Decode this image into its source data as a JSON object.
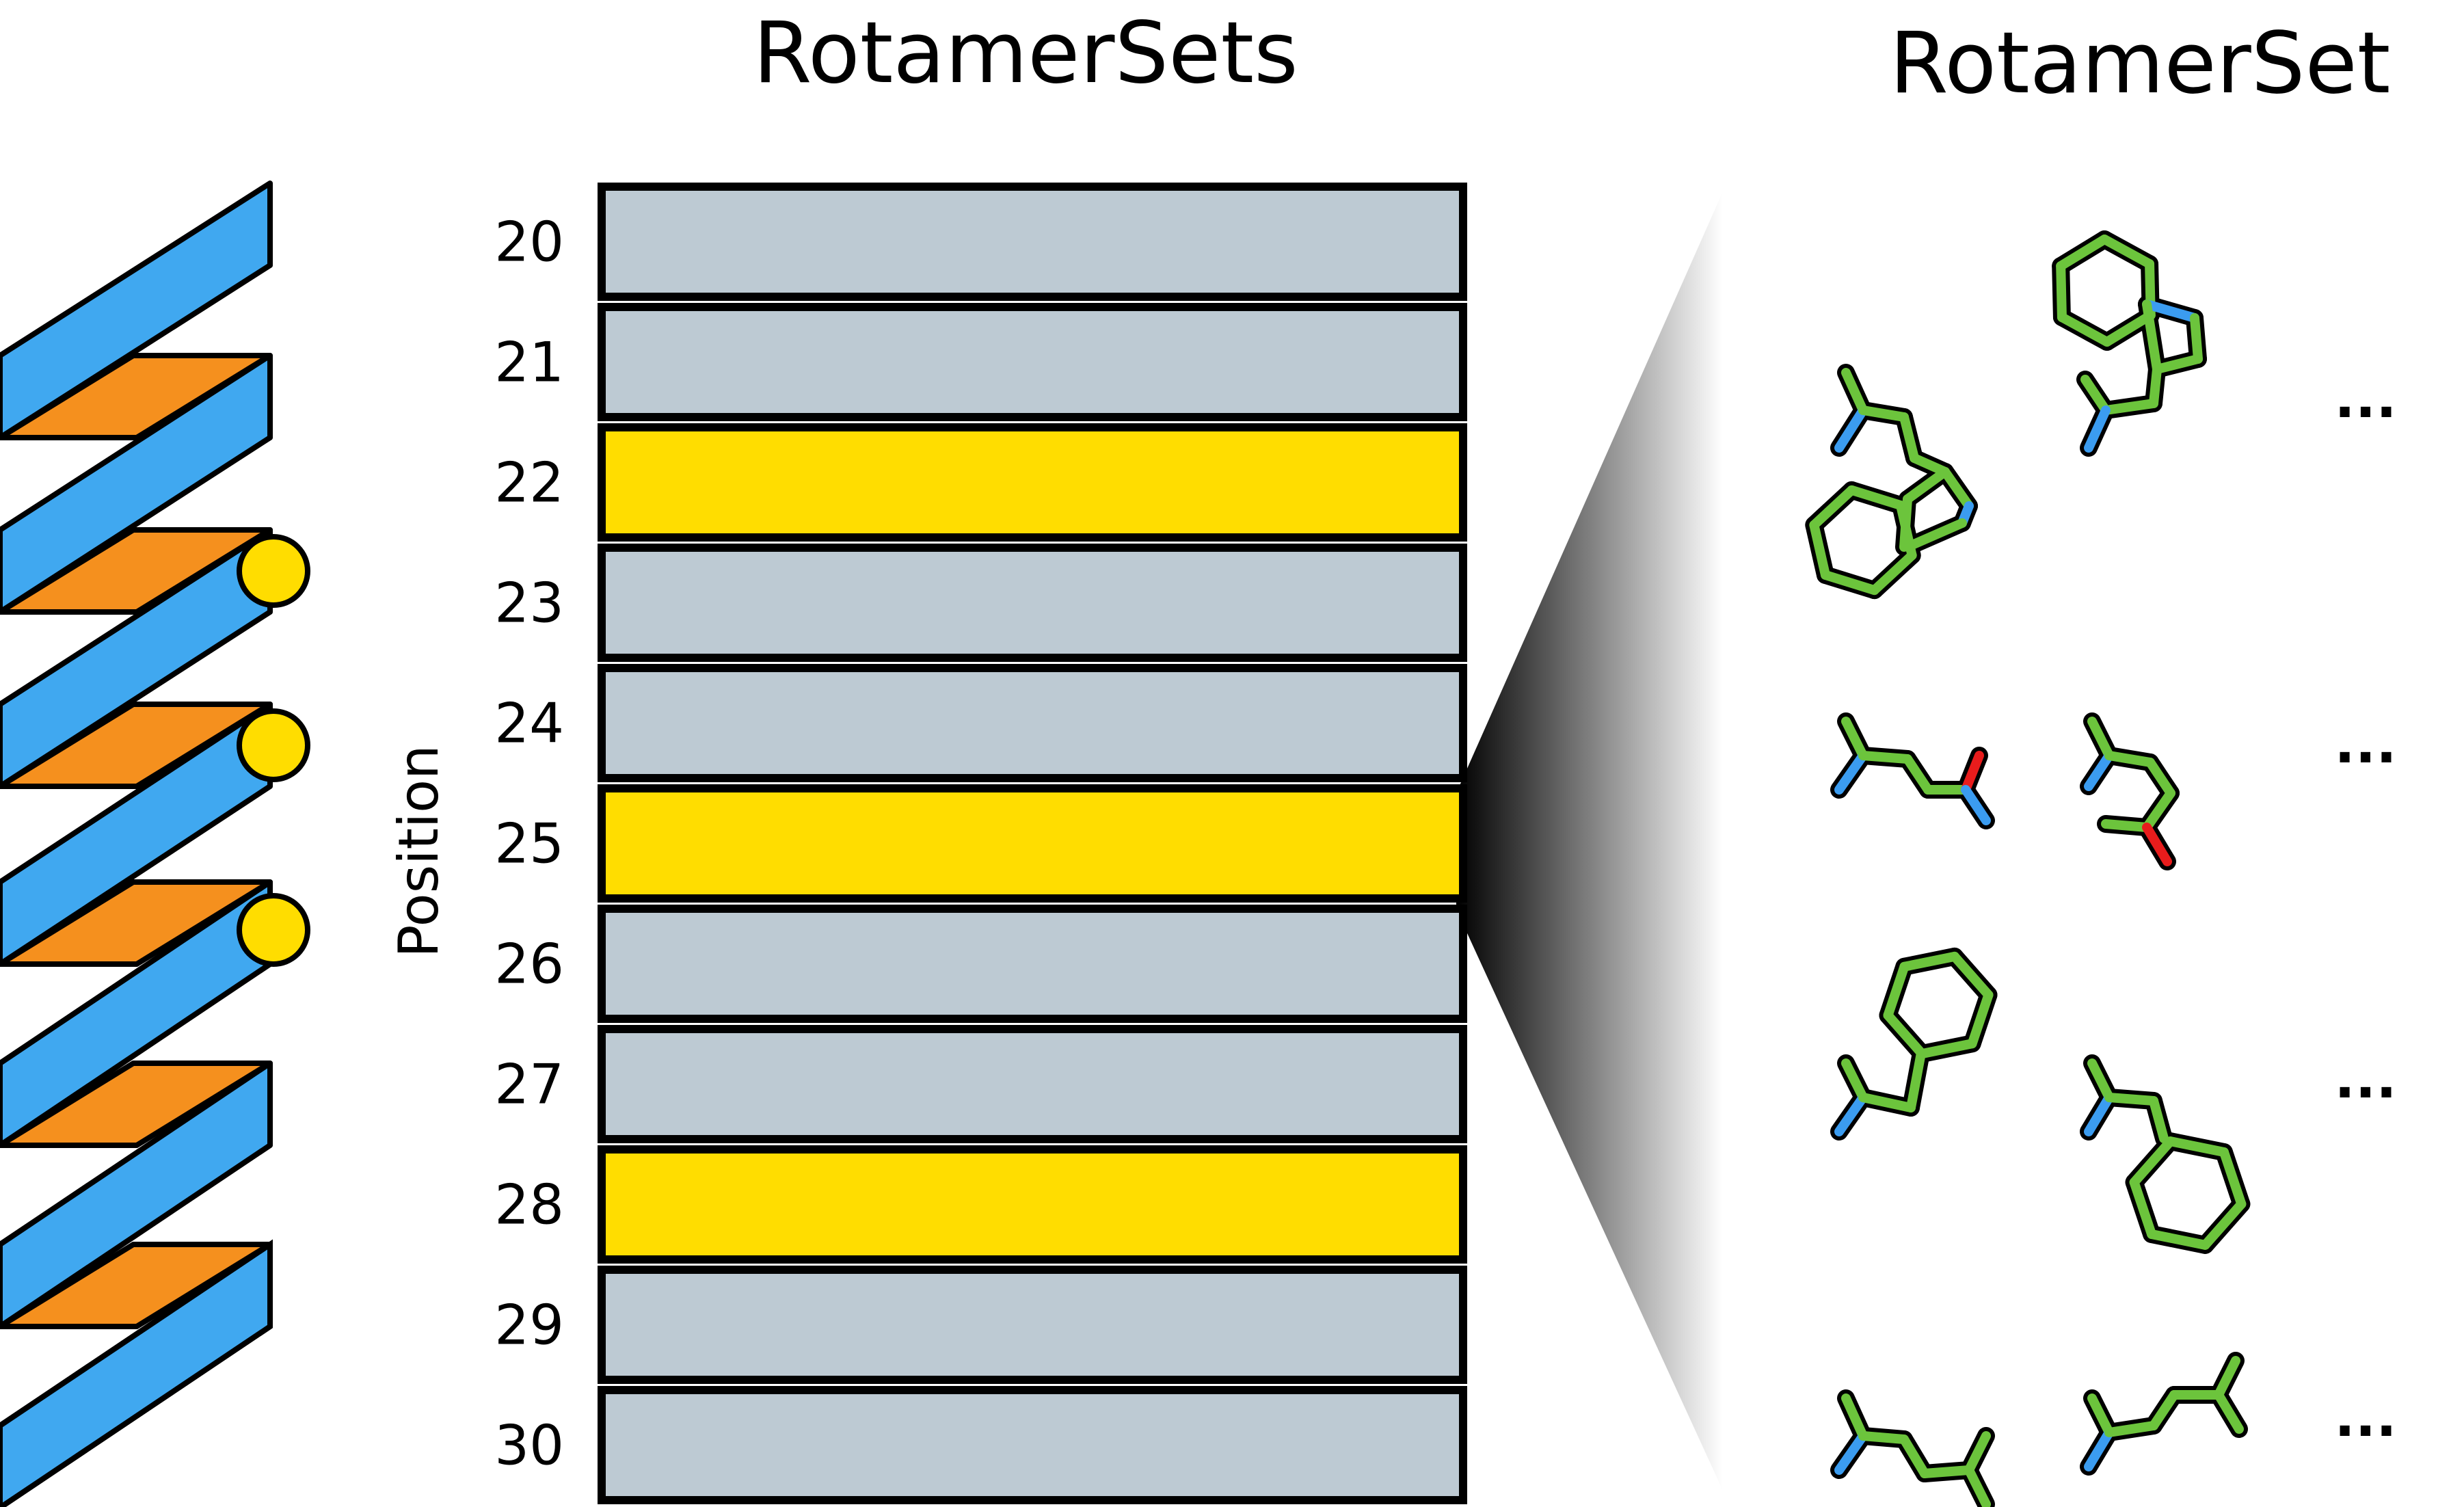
{
  "titles": {
    "rotamer_sets": "RotamerSets",
    "rotamer_set": "RotamerSet"
  },
  "axis_label": "Position",
  "positions": [
    {
      "label": "20",
      "designable": false
    },
    {
      "label": "21",
      "designable": false
    },
    {
      "label": "22",
      "designable": true
    },
    {
      "label": "23",
      "designable": false
    },
    {
      "label": "24",
      "designable": false
    },
    {
      "label": "25",
      "designable": true
    },
    {
      "label": "26",
      "designable": false
    },
    {
      "label": "27",
      "designable": false
    },
    {
      "label": "28",
      "designable": true
    },
    {
      "label": "29",
      "designable": false
    },
    {
      "label": "30",
      "designable": false
    }
  ],
  "continuation": [
    "...",
    "...",
    "...",
    "..."
  ],
  "colors": {
    "row_default": "#bdcad3",
    "row_designable": "#ffdd00",
    "ribbon_blue": "#40a8f0",
    "ribbon_orange": "#f5901e",
    "marker_yellow": "#ffdd00",
    "carbon": "#6cc43c",
    "nitrogen": "#3b9cf0",
    "oxygen": "#e81c1c"
  }
}
